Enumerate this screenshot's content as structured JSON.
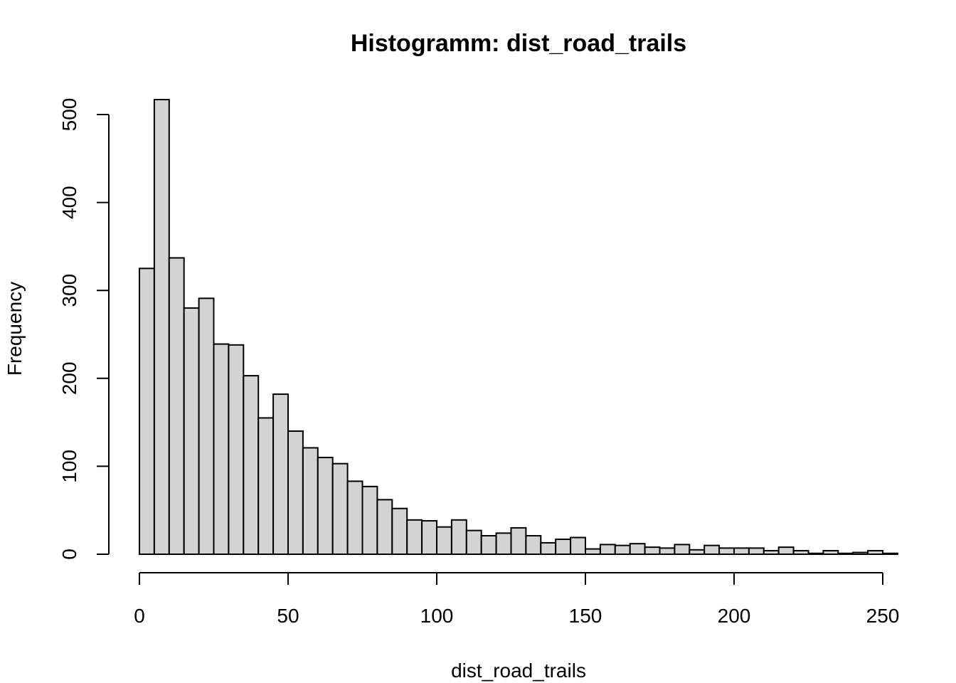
{
  "chart_data": {
    "type": "bar",
    "title": "Histogramm: dist_road_trails",
    "xlabel": "dist_road_trails",
    "ylabel": "Frequency",
    "bin_width": 5,
    "bin_start": 0,
    "xlim": [
      0,
      255
    ],
    "ylim": [
      0,
      520
    ],
    "x_ticks": [
      0,
      50,
      100,
      150,
      200,
      250
    ],
    "y_ticks": [
      0,
      100,
      200,
      300,
      400,
      500
    ],
    "values": [
      325,
      517,
      337,
      280,
      291,
      239,
      238,
      203,
      155,
      182,
      140,
      121,
      110,
      103,
      83,
      77,
      62,
      52,
      39,
      38,
      31,
      39,
      27,
      21,
      24,
      30,
      21,
      13,
      17,
      19,
      6,
      11,
      10,
      12,
      8,
      7,
      11,
      5,
      10,
      7,
      7,
      7,
      4,
      8,
      4,
      1,
      4,
      1,
      2,
      4,
      1
    ],
    "fill_color": "#d3d3d3",
    "grid": false
  }
}
